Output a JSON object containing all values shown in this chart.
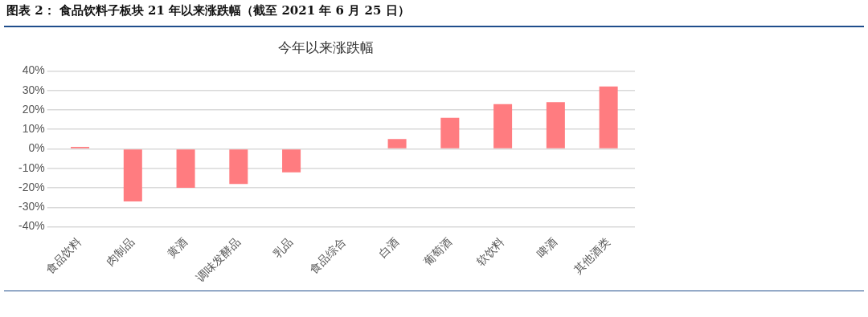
{
  "chart_data": {
    "type": "bar",
    "title": "图表 2：  食品饮料子板块 21 年以来涨跌幅（截至 2021 年 6 月 25 日）",
    "subtitle": "今年以来涨跌幅",
    "categories": [
      "食品饮料",
      "肉制品",
      "黄酒",
      "调味发酵品",
      "乳品",
      "食品综合",
      "白酒",
      "葡萄酒",
      "软饮料",
      "啤酒",
      "其他酒类"
    ],
    "values": [
      1,
      -27,
      -20,
      -18,
      -12,
      0,
      5,
      16,
      23,
      24,
      32
    ],
    "color": "#ff7c80",
    "ylim": [
      -40,
      40
    ],
    "yticks": [
      {
        "value": -40,
        "label": "-40%"
      },
      {
        "value": -30,
        "label": "-30%"
      },
      {
        "value": -20,
        "label": "-20%"
      },
      {
        "value": -10,
        "label": "-10%"
      },
      {
        "value": 0,
        "label": "0%"
      },
      {
        "value": 10,
        "label": "10%"
      },
      {
        "value": 20,
        "label": "20%"
      },
      {
        "value": 30,
        "label": "30%"
      },
      {
        "value": 40,
        "label": "40%"
      }
    ],
    "grid": "y"
  }
}
